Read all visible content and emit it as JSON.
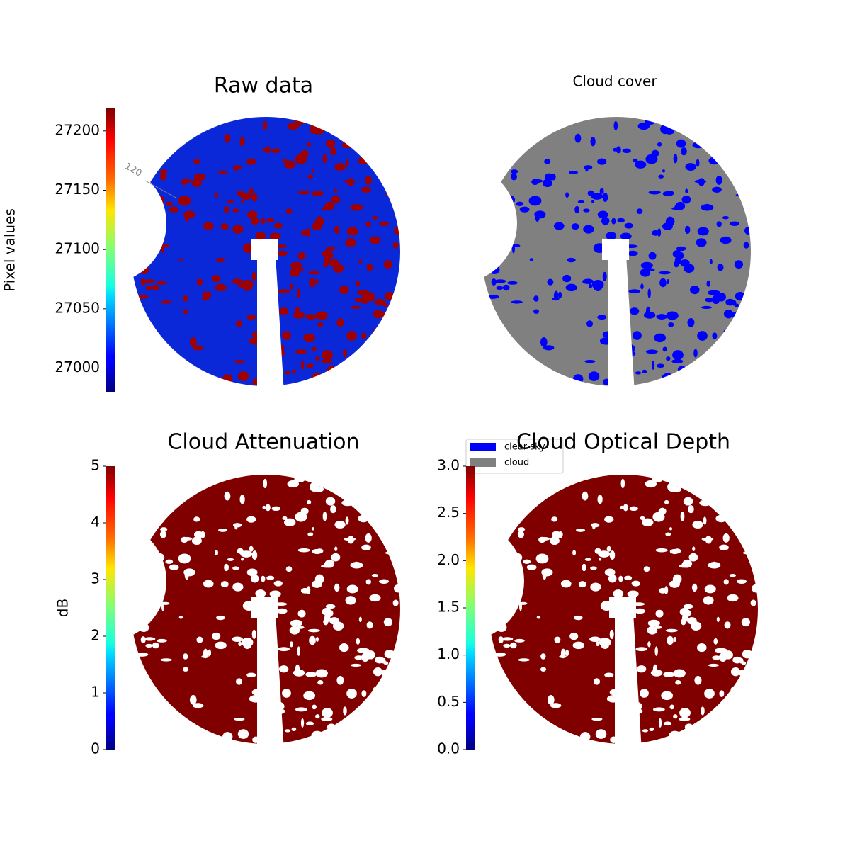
{
  "chart_data": [
    {
      "type": "image",
      "title": "Raw data",
      "colormap": "jet",
      "background": "#0a28d8",
      "spot_color": "#a00000",
      "colorbar_label": "Pixel values",
      "ylim": [
        26980,
        27219
      ],
      "yticks": [
        27000,
        27050,
        27100,
        27150,
        27200
      ],
      "annotations": [
        "120"
      ]
    },
    {
      "type": "image",
      "title": "Cloud cover",
      "background": "#808080",
      "spot_color": "#0000ff",
      "legend": "lower left",
      "series": [
        {
          "name": "clear sky",
          "color": "#0000ff"
        },
        {
          "name": "cloud",
          "color": "#808080"
        }
      ]
    },
    {
      "type": "image",
      "title": "Cloud Attenuation",
      "colormap": "jet",
      "background": "#800000",
      "spot_color": "#ffffff",
      "colorbar_label": "dB",
      "ylim": [
        0,
        5
      ],
      "yticks": [
        0,
        1,
        2,
        3,
        4,
        5
      ]
    },
    {
      "type": "image",
      "title": "Cloud Optical Depth",
      "colormap": "jet",
      "background": "#800000",
      "spot_color": "#ffffff",
      "ylim": [
        0,
        3
      ],
      "yticks": [
        {
          "value": 0,
          "label": "0.0"
        },
        {
          "value": 0.5,
          "label": "0.5"
        },
        {
          "value": 1,
          "label": "1.0"
        },
        {
          "value": 1.5,
          "label": "1.5"
        },
        {
          "value": 2,
          "label": "2.0"
        },
        {
          "value": 2.5,
          "label": "2.5"
        },
        {
          "value": 3,
          "label": "3.0"
        }
      ]
    }
  ]
}
